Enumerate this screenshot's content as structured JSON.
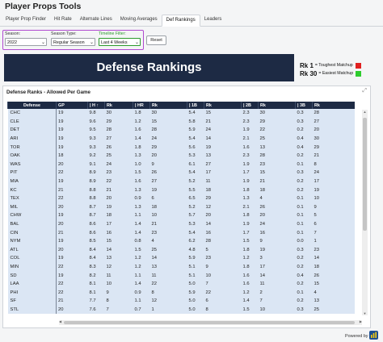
{
  "app": {
    "title": "Player Props Tools"
  },
  "tabs": [
    {
      "label": "Player Prop Finder",
      "active": false
    },
    {
      "label": "Hit Rate",
      "active": false
    },
    {
      "label": "Alternate Lines",
      "active": false
    },
    {
      "label": "Moving Averages",
      "active": false
    },
    {
      "label": "Def Rankings",
      "active": true
    },
    {
      "label": "Leaders",
      "active": false
    }
  ],
  "filters": {
    "season_label": "Season:",
    "season_value": "2022",
    "season_type_label": "Season Type:",
    "season_type_value": "Regular Season",
    "timeline_label": "Timeline Filter:",
    "timeline_value": "Last 4 Weeks",
    "reset_label": "Reset"
  },
  "banner": {
    "title": "Defense Rankings"
  },
  "legend": {
    "rk1": "Rk 1",
    "rk1_text": "= Toughest Matchup",
    "rk1_color": "#e02020",
    "rk30": "Rk 30",
    "rk30_text": "= Easiest Matchup",
    "rk30_color": "#2ecc2e"
  },
  "card": {
    "title": "Defense Ranks - Allowed Per Game"
  },
  "table": {
    "columns": [
      "Defense",
      "GP",
      "| H",
      "Rk",
      "| HR",
      "Rk",
      "| 1B",
      "Rk",
      "| 2B",
      "Rk",
      "| 3B",
      "Rk"
    ],
    "rows": [
      [
        "CHC",
        "19",
        "9.8",
        "30",
        "1.8",
        "30",
        "5.4",
        "15",
        "2.3",
        "30",
        "0.3",
        "28"
      ],
      [
        "CLE",
        "19",
        "9.6",
        "29",
        "1.2",
        "15",
        "5.8",
        "21",
        "2.3",
        "29",
        "0.3",
        "27"
      ],
      [
        "DET",
        "19",
        "9.5",
        "28",
        "1.6",
        "28",
        "5.9",
        "24",
        "1.9",
        "22",
        "0.2",
        "20"
      ],
      [
        "ARI",
        "19",
        "9.3",
        "27",
        "1.4",
        "24",
        "5.4",
        "14",
        "2.1",
        "25",
        "0.4",
        "30"
      ],
      [
        "TOR",
        "19",
        "9.3",
        "26",
        "1.8",
        "29",
        "5.6",
        "19",
        "1.6",
        "13",
        "0.4",
        "29"
      ],
      [
        "OAK",
        "18",
        "9.2",
        "25",
        "1.3",
        "20",
        "5.3",
        "13",
        "2.3",
        "28",
        "0.2",
        "21"
      ],
      [
        "WAS",
        "20",
        "9.1",
        "24",
        "1.0",
        "9",
        "6.1",
        "27",
        "1.9",
        "23",
        "0.1",
        "8"
      ],
      [
        "PIT",
        "22",
        "8.9",
        "23",
        "1.5",
        "26",
        "5.4",
        "17",
        "1.7",
        "15",
        "0.3",
        "24"
      ],
      [
        "MIA",
        "19",
        "8.9",
        "22",
        "1.6",
        "27",
        "5.2",
        "11",
        "1.9",
        "21",
        "0.2",
        "17"
      ],
      [
        "KC",
        "21",
        "8.8",
        "21",
        "1.3",
        "19",
        "5.5",
        "18",
        "1.8",
        "18",
        "0.2",
        "19"
      ],
      [
        "TEX",
        "22",
        "8.8",
        "20",
        "0.9",
        "6",
        "6.5",
        "29",
        "1.3",
        "4",
        "0.1",
        "10"
      ],
      [
        "MIL",
        "20",
        "8.7",
        "19",
        "1.3",
        "18",
        "5.2",
        "12",
        "2.1",
        "26",
        "0.1",
        "9"
      ],
      [
        "CHW",
        "19",
        "8.7",
        "18",
        "1.1",
        "10",
        "5.7",
        "20",
        "1.8",
        "20",
        "0.1",
        "5"
      ],
      [
        "BAL",
        "20",
        "8.6",
        "17",
        "1.4",
        "21",
        "5.3",
        "14",
        "1.9",
        "24",
        "0.1",
        "6"
      ],
      [
        "CIN",
        "21",
        "8.6",
        "16",
        "1.4",
        "23",
        "5.4",
        "16",
        "1.7",
        "16",
        "0.1",
        "7"
      ],
      [
        "NYM",
        "19",
        "8.5",
        "15",
        "0.8",
        "4",
        "6.2",
        "28",
        "1.5",
        "9",
        "0.0",
        "1"
      ],
      [
        "ATL",
        "20",
        "8.4",
        "14",
        "1.5",
        "25",
        "4.8",
        "5",
        "1.8",
        "19",
        "0.3",
        "23"
      ],
      [
        "COL",
        "19",
        "8.4",
        "13",
        "1.2",
        "14",
        "5.9",
        "23",
        "1.2",
        "3",
        "0.2",
        "14"
      ],
      [
        "MIN",
        "22",
        "8.3",
        "12",
        "1.2",
        "13",
        "5.1",
        "9",
        "1.8",
        "17",
        "0.2",
        "18"
      ],
      [
        "SD",
        "19",
        "8.2",
        "11",
        "1.1",
        "11",
        "5.1",
        "10",
        "1.6",
        "14",
        "0.4",
        "26"
      ],
      [
        "LAA",
        "22",
        "8.1",
        "10",
        "1.4",
        "22",
        "5.0",
        "7",
        "1.6",
        "11",
        "0.2",
        "15"
      ],
      [
        "PHI",
        "22",
        "8.1",
        "9",
        "0.9",
        "8",
        "5.9",
        "22",
        "1.2",
        "2",
        "0.1",
        "4"
      ],
      [
        "SF",
        "21",
        "7.7",
        "8",
        "1.1",
        "12",
        "5.0",
        "6",
        "1.4",
        "7",
        "0.2",
        "13"
      ],
      [
        "STL",
        "20",
        "7.6",
        "7",
        "0.7",
        "1",
        "5.0",
        "8",
        "1.5",
        "10",
        "0.3",
        "25"
      ]
    ]
  },
  "footer": {
    "powered_by": "Powered by"
  }
}
